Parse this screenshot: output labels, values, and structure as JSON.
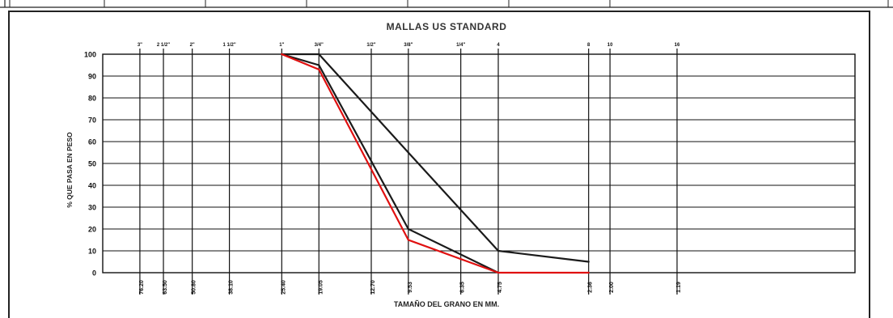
{
  "chart_data": {
    "type": "line",
    "title": "MALLAS US STANDARD",
    "xlabel": "TAMAÑO DEL GRANO EN MM.",
    "ylabel": "% QUE PASA EN PESO",
    "yticks": [
      "0",
      "10",
      "20",
      "30",
      "40",
      "50",
      "60",
      "70",
      "80",
      "90",
      "100"
    ],
    "ylim": [
      0,
      100
    ],
    "x_scale": "log",
    "x_reversed": true,
    "xlim": [
      101.6,
      0.3
    ],
    "top_sieve_labels": [
      "3\"",
      "2 1/2\"",
      "2\"",
      "1 1/2\"",
      "1\"",
      "3/4\"",
      "1/2\"",
      "3/8\"",
      "1/4\"",
      "4",
      "8",
      "10",
      "16"
    ],
    "bottom_mm_labels": [
      "76.20",
      "63.50",
      "50.80",
      "38.10",
      "25.40",
      "19.05",
      "12.70",
      "9.53",
      "6.35",
      "4.75",
      "2.36",
      "2.00",
      "1.19"
    ],
    "sieve_sizes_mm": [
      76.2,
      63.5,
      50.8,
      38.1,
      25.4,
      19.05,
      12.7,
      9.53,
      6.35,
      4.75,
      2.36,
      2.0,
      1.19
    ],
    "grid": true,
    "series": [
      {
        "color": "#1a1a1a",
        "x": [
          25.4,
          19.05,
          9.53,
          4.75,
          2.36
        ],
        "y": [
          100,
          100,
          55,
          10,
          5
        ]
      },
      {
        "color": "#1a1a1a",
        "x": [
          25.4,
          19.05,
          9.53,
          4.75
        ],
        "y": [
          100,
          95,
          20,
          0
        ]
      },
      {
        "color": "#e01010",
        "x": [
          25.4,
          19.05,
          9.53,
          4.75,
          2.36
        ],
        "y": [
          100,
          93,
          15,
          0,
          0
        ]
      }
    ]
  }
}
